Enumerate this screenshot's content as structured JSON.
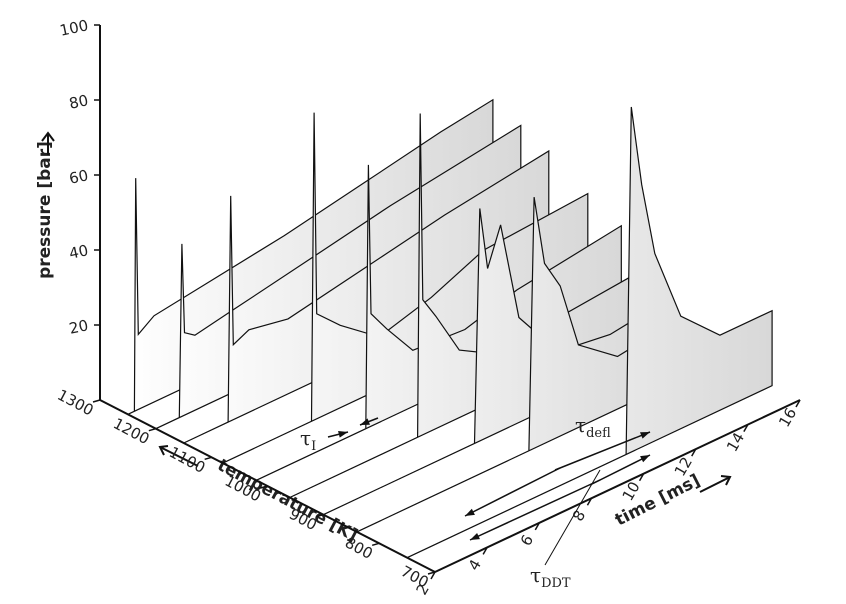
{
  "chart_data": {
    "type": "waterfall",
    "x_label": "time [ms]",
    "y_label": "pressure [bar]",
    "z_label": "temperature [K]",
    "xlim": [
      2,
      16
    ],
    "xticks": [
      2,
      4,
      6,
      8,
      10,
      12,
      14,
      16
    ],
    "ylim": [
      0,
      100
    ],
    "yticks": [
      20,
      40,
      60,
      80,
      100
    ],
    "zlim": [
      700,
      1300
    ],
    "zticks": [
      700,
      800,
      900,
      1000,
      1100,
      1200,
      1300
    ],
    "annotations": [
      {
        "symbol": "τ",
        "sub": "I"
      },
      {
        "symbol": "τ",
        "sub": "defl"
      },
      {
        "symbol": "τ",
        "sub": "DDT"
      }
    ],
    "color": "#d8d8d8",
    "series": [
      {
        "temperature": 1250,
        "x": [
          2,
          2.25,
          2.3,
          2.4,
          3,
          5,
          8,
          11,
          14,
          16
        ],
        "values": [
          0,
          0,
          62,
          20,
          23,
          25,
          28,
          32,
          36,
          38
        ]
      },
      {
        "temperature": 1200,
        "x": [
          2,
          2.9,
          3,
          3.1,
          3.5,
          5,
          8,
          11,
          14,
          16
        ],
        "values": [
          0,
          0,
          46,
          22,
          20,
          22,
          26,
          30,
          33,
          35
        ]
      },
      {
        "temperature": 1150,
        "x": [
          2,
          3.7,
          3.8,
          3.9,
          4.5,
          6,
          9,
          12,
          16
        ],
        "values": [
          0,
          0,
          60,
          20,
          22,
          20,
          24,
          28,
          32
        ]
      },
      {
        "temperature": 1080,
        "x": [
          2,
          5.4,
          5.5,
          5.6,
          6.5,
          8,
          10,
          12,
          16
        ],
        "values": [
          0,
          0,
          82,
          28,
          22,
          14,
          18,
          24,
          26
        ]
      },
      {
        "temperature": 1020,
        "x": [
          2,
          6.2,
          6.3,
          6.4,
          7,
          8,
          10,
          12,
          16
        ],
        "values": [
          0,
          0,
          70,
          30,
          24,
          15,
          14,
          18,
          22
        ]
      },
      {
        "temperature": 960,
        "x": [
          2,
          6.9,
          7,
          7.1,
          7.6,
          8.5,
          10,
          12,
          15
        ],
        "values": [
          0,
          0,
          86,
          36,
          30,
          18,
          12,
          14,
          16
        ]
      },
      {
        "temperature": 900,
        "x": [
          2,
          7.8,
          8,
          8.3,
          8.8,
          9.5,
          11,
          13,
          15
        ],
        "values": [
          0,
          0,
          62,
          45,
          55,
          28,
          14,
          12,
          14
        ]
      },
      {
        "temperature": 840,
        "x": [
          2,
          8.6,
          8.8,
          9.2,
          9.8,
          10.5,
          12,
          14
        ],
        "values": [
          0,
          0,
          67,
          48,
          40,
          22,
          14,
          16
        ]
      },
      {
        "temperature": 750,
        "x": [
          2,
          10.4,
          10.6,
          11,
          11.5,
          12.5,
          14,
          16
        ],
        "values": [
          0,
          0,
          92,
          70,
          50,
          30,
          20,
          20
        ]
      }
    ]
  }
}
